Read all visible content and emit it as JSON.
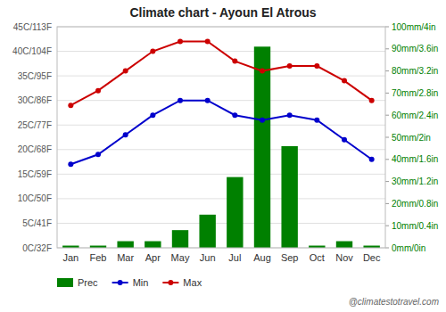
{
  "chart_data": {
    "type": "combo",
    "title": "Climate chart - Ayoun El Atrous",
    "categories": [
      "Jan",
      "Feb",
      "Mar",
      "Apr",
      "May",
      "Jun",
      "Jul",
      "Aug",
      "Sep",
      "Oct",
      "Nov",
      "Dec"
    ],
    "series": [
      {
        "name": "Prec",
        "type": "bar",
        "axis": "y2",
        "color": "#008000",
        "values": [
          1,
          1,
          3,
          3,
          8,
          15,
          32,
          91,
          46,
          1,
          3,
          1
        ]
      },
      {
        "name": "Min",
        "type": "line",
        "marker": "circle",
        "color": "#0000cc",
        "values": [
          17,
          19,
          23,
          27,
          30,
          30,
          27,
          26,
          27,
          26,
          22,
          18
        ]
      },
      {
        "name": "Max",
        "type": "line",
        "marker": "circle",
        "color": "#cc0000",
        "values": [
          29,
          32,
          36,
          40,
          42,
          42,
          38,
          36,
          37,
          37,
          34,
          30
        ]
      }
    ],
    "ylim": [
      0,
      45
    ],
    "yticks": [
      {
        "value": 0,
        "label": "0C/32F"
      },
      {
        "value": 5,
        "label": "5C/41F"
      },
      {
        "value": 10,
        "label": "10C/50F"
      },
      {
        "value": 15,
        "label": "15C/59F"
      },
      {
        "value": 20,
        "label": "20C/68F"
      },
      {
        "value": 25,
        "label": "25C/77F"
      },
      {
        "value": 30,
        "label": "30C/86F"
      },
      {
        "value": 35,
        "label": "35C/95F"
      },
      {
        "value": 40,
        "label": "40C/104F"
      },
      {
        "value": 45,
        "label": "45C/113F"
      }
    ],
    "y2lim": [
      0,
      100
    ],
    "y2ticks": [
      {
        "value": 0,
        "label": "0mm/0in"
      },
      {
        "value": 10,
        "label": "10mm/0.4in"
      },
      {
        "value": 20,
        "label": "20mm/0.8in"
      },
      {
        "value": 30,
        "label": "30mm/1.2in"
      },
      {
        "value": 40,
        "label": "40mm/1.6in"
      },
      {
        "value": 50,
        "label": "50mm/2in"
      },
      {
        "value": 60,
        "label": "60mm/2.4in"
      },
      {
        "value": 70,
        "label": "70mm/2.8in"
      },
      {
        "value": 80,
        "label": "80mm/3.2in"
      },
      {
        "value": 90,
        "label": "90mm/3.6in"
      },
      {
        "value": 100,
        "label": "100mm/4in"
      }
    ],
    "grid": true,
    "legend": "bottom",
    "annotations": [
      "@climatestotravel.com"
    ]
  }
}
